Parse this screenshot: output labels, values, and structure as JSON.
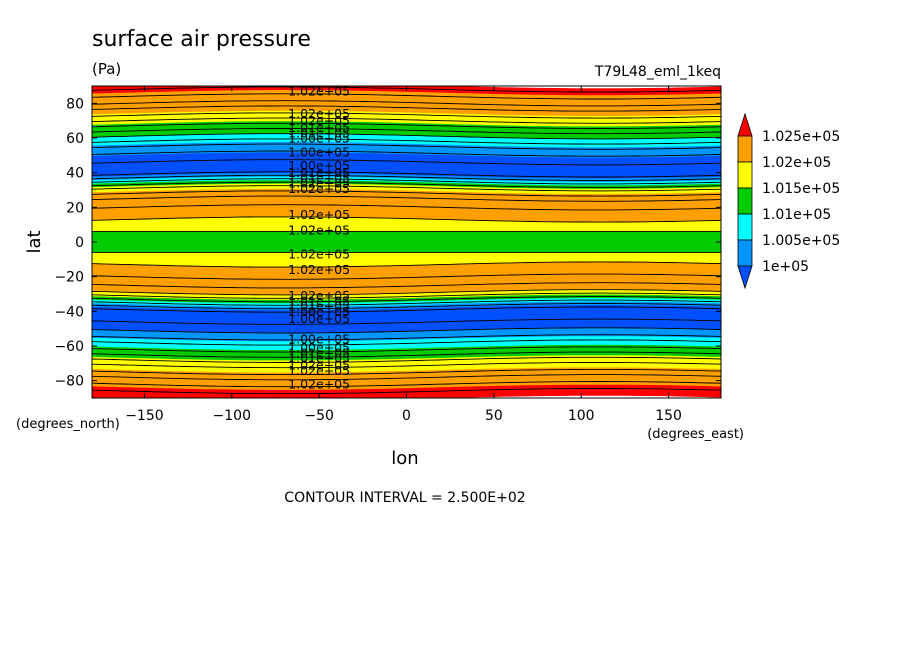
{
  "chart_data": {
    "type": "heatmap",
    "subtype": "filled-contour",
    "title": "surface air pressure",
    "units": "(Pa)",
    "run_label": "T79L48_eml_1keq",
    "xlabel": "lon",
    "ylabel": "lat",
    "x_unit_label": "(degrees_east)",
    "y_unit_label": "(degrees_north)",
    "xlim": [
      -180,
      180
    ],
    "ylim": [
      -90,
      90
    ],
    "x_ticks": [
      -150,
      -100,
      -50,
      0,
      50,
      100,
      150
    ],
    "y_ticks": [
      -80,
      -60,
      -40,
      -20,
      0,
      20,
      40,
      60,
      80
    ],
    "footer": "CONTOUR INTERVAL = 2.500E+02",
    "contour_interval": 250,
    "colorbar": {
      "levels": [
        "1.025e+05",
        "1.02e+05",
        "1.015e+05",
        "1.01e+05",
        "1.005e+05",
        "1e+05"
      ],
      "colors": [
        "#ff0000",
        "#ffa000",
        "#ffff00",
        "#00cc00",
        "#00ffff",
        "#0096ff",
        "#0050ff"
      ],
      "bands": [
        {
          "label": ">1.025e+05",
          "color": "#ff0000"
        },
        {
          "label": "1.02e+05-1.025e+05",
          "color": "#ffa000"
        },
        {
          "label": "1.015e+05-1.02e+05",
          "color": "#ffff00"
        },
        {
          "label": "1.01e+05-1.015e+05",
          "color": "#00cc00"
        },
        {
          "label": "1.005e+05-1.01e+05",
          "color": "#00ffff"
        },
        {
          "label": "1e+05-1.005e+05",
          "color": "#0096ff"
        },
        {
          "label": "<1e+05",
          "color": "#0050ff"
        }
      ]
    },
    "zonal_profile": [
      {
        "lat": 90,
        "color": "#ff0000"
      },
      {
        "lat": 86,
        "color": "#ffa000"
      },
      {
        "lat": 74,
        "color": "#ffff00"
      },
      {
        "lat": 68,
        "color": "#00cc00"
      },
      {
        "lat": 61,
        "color": "#00ffff"
      },
      {
        "lat": 56,
        "color": "#0096ff"
      },
      {
        "lat": 50,
        "color": "#0050ff"
      },
      {
        "lat": 38,
        "color": "#0096ff"
      },
      {
        "lat": 36,
        "color": "#00ffff"
      },
      {
        "lat": 34,
        "color": "#00cc00"
      },
      {
        "lat": 32,
        "color": "#ffff00"
      },
      {
        "lat": 29,
        "color": "#ffa000"
      },
      {
        "lat": 13,
        "color": "#ffff00"
      },
      {
        "lat": 6,
        "color": "#00cc00"
      },
      {
        "lat": -6,
        "color": "#ffff00"
      },
      {
        "lat": -13,
        "color": "#ffa000"
      },
      {
        "lat": -29,
        "color": "#ffff00"
      },
      {
        "lat": -32,
        "color": "#00cc00"
      },
      {
        "lat": -34,
        "color": "#00ffff"
      },
      {
        "lat": -36,
        "color": "#0096ff"
      },
      {
        "lat": -38,
        "color": "#0050ff"
      },
      {
        "lat": -51,
        "color": "#0096ff"
      },
      {
        "lat": -56,
        "color": "#00ffff"
      },
      {
        "lat": -61,
        "color": "#00cc00"
      },
      {
        "lat": -67,
        "color": "#ffff00"
      },
      {
        "lat": -74,
        "color": "#ffa000"
      },
      {
        "lat": -84,
        "color": "#ff0000"
      },
      {
        "lat": -90,
        "color": null
      }
    ],
    "contour_lats": [
      88,
      84,
      80,
      77,
      73,
      70,
      67,
      64,
      61,
      58,
      55,
      51,
      46,
      39,
      37,
      35,
      33,
      31,
      28,
      25,
      20,
      13,
      6,
      -6,
      -13,
      -20,
      -25,
      -29,
      -31,
      -33,
      -35,
      -37,
      -39,
      -46,
      -51,
      -55,
      -58,
      -62,
      -65,
      -68,
      -71,
      -75,
      -78,
      -82,
      -86
    ],
    "contour_labels": [
      {
        "lat": 87,
        "text": "1.02e+05"
      },
      {
        "lat": 74,
        "text": "1.02e+05"
      },
      {
        "lat": 70,
        "text": "1.02e+05"
      },
      {
        "lat": 66,
        "text": "1.01e+05"
      },
      {
        "lat": 63,
        "text": "1.01e+05"
      },
      {
        "lat": 60,
        "text": "1.00e+05"
      },
      {
        "lat": 52,
        "text": "1.00e+05"
      },
      {
        "lat": 44,
        "text": "1.00e+05"
      },
      {
        "lat": 40,
        "text": "1.01e+05"
      },
      {
        "lat": 37,
        "text": "1.01e+05"
      },
      {
        "lat": 34,
        "text": "1.02e+05"
      },
      {
        "lat": 31,
        "text": "1.02e+05"
      },
      {
        "lat": 16,
        "text": "1.02e+05"
      },
      {
        "lat": 7,
        "text": "1.02e+05"
      },
      {
        "lat": -7,
        "text": "1.02e+05"
      },
      {
        "lat": -16,
        "text": "1.02e+05"
      },
      {
        "lat": -31,
        "text": "1.02e+05"
      },
      {
        "lat": -34,
        "text": "1.01e+05"
      },
      {
        "lat": -37,
        "text": "1.01e+05"
      },
      {
        "lat": -40,
        "text": "1.00e+05"
      },
      {
        "lat": -44,
        "text": "1.00e+05"
      },
      {
        "lat": -56,
        "text": "1.00e+05"
      },
      {
        "lat": -61,
        "text": "1.00e+05"
      },
      {
        "lat": -64,
        "text": "1.01e+05"
      },
      {
        "lat": -67,
        "text": "1.01e+05"
      },
      {
        "lat": -71,
        "text": "1.02e+05"
      },
      {
        "lat": -74,
        "text": "1.02e+05"
      },
      {
        "lat": -82,
        "text": "1.02e+05"
      }
    ],
    "label_lon": -50
  }
}
